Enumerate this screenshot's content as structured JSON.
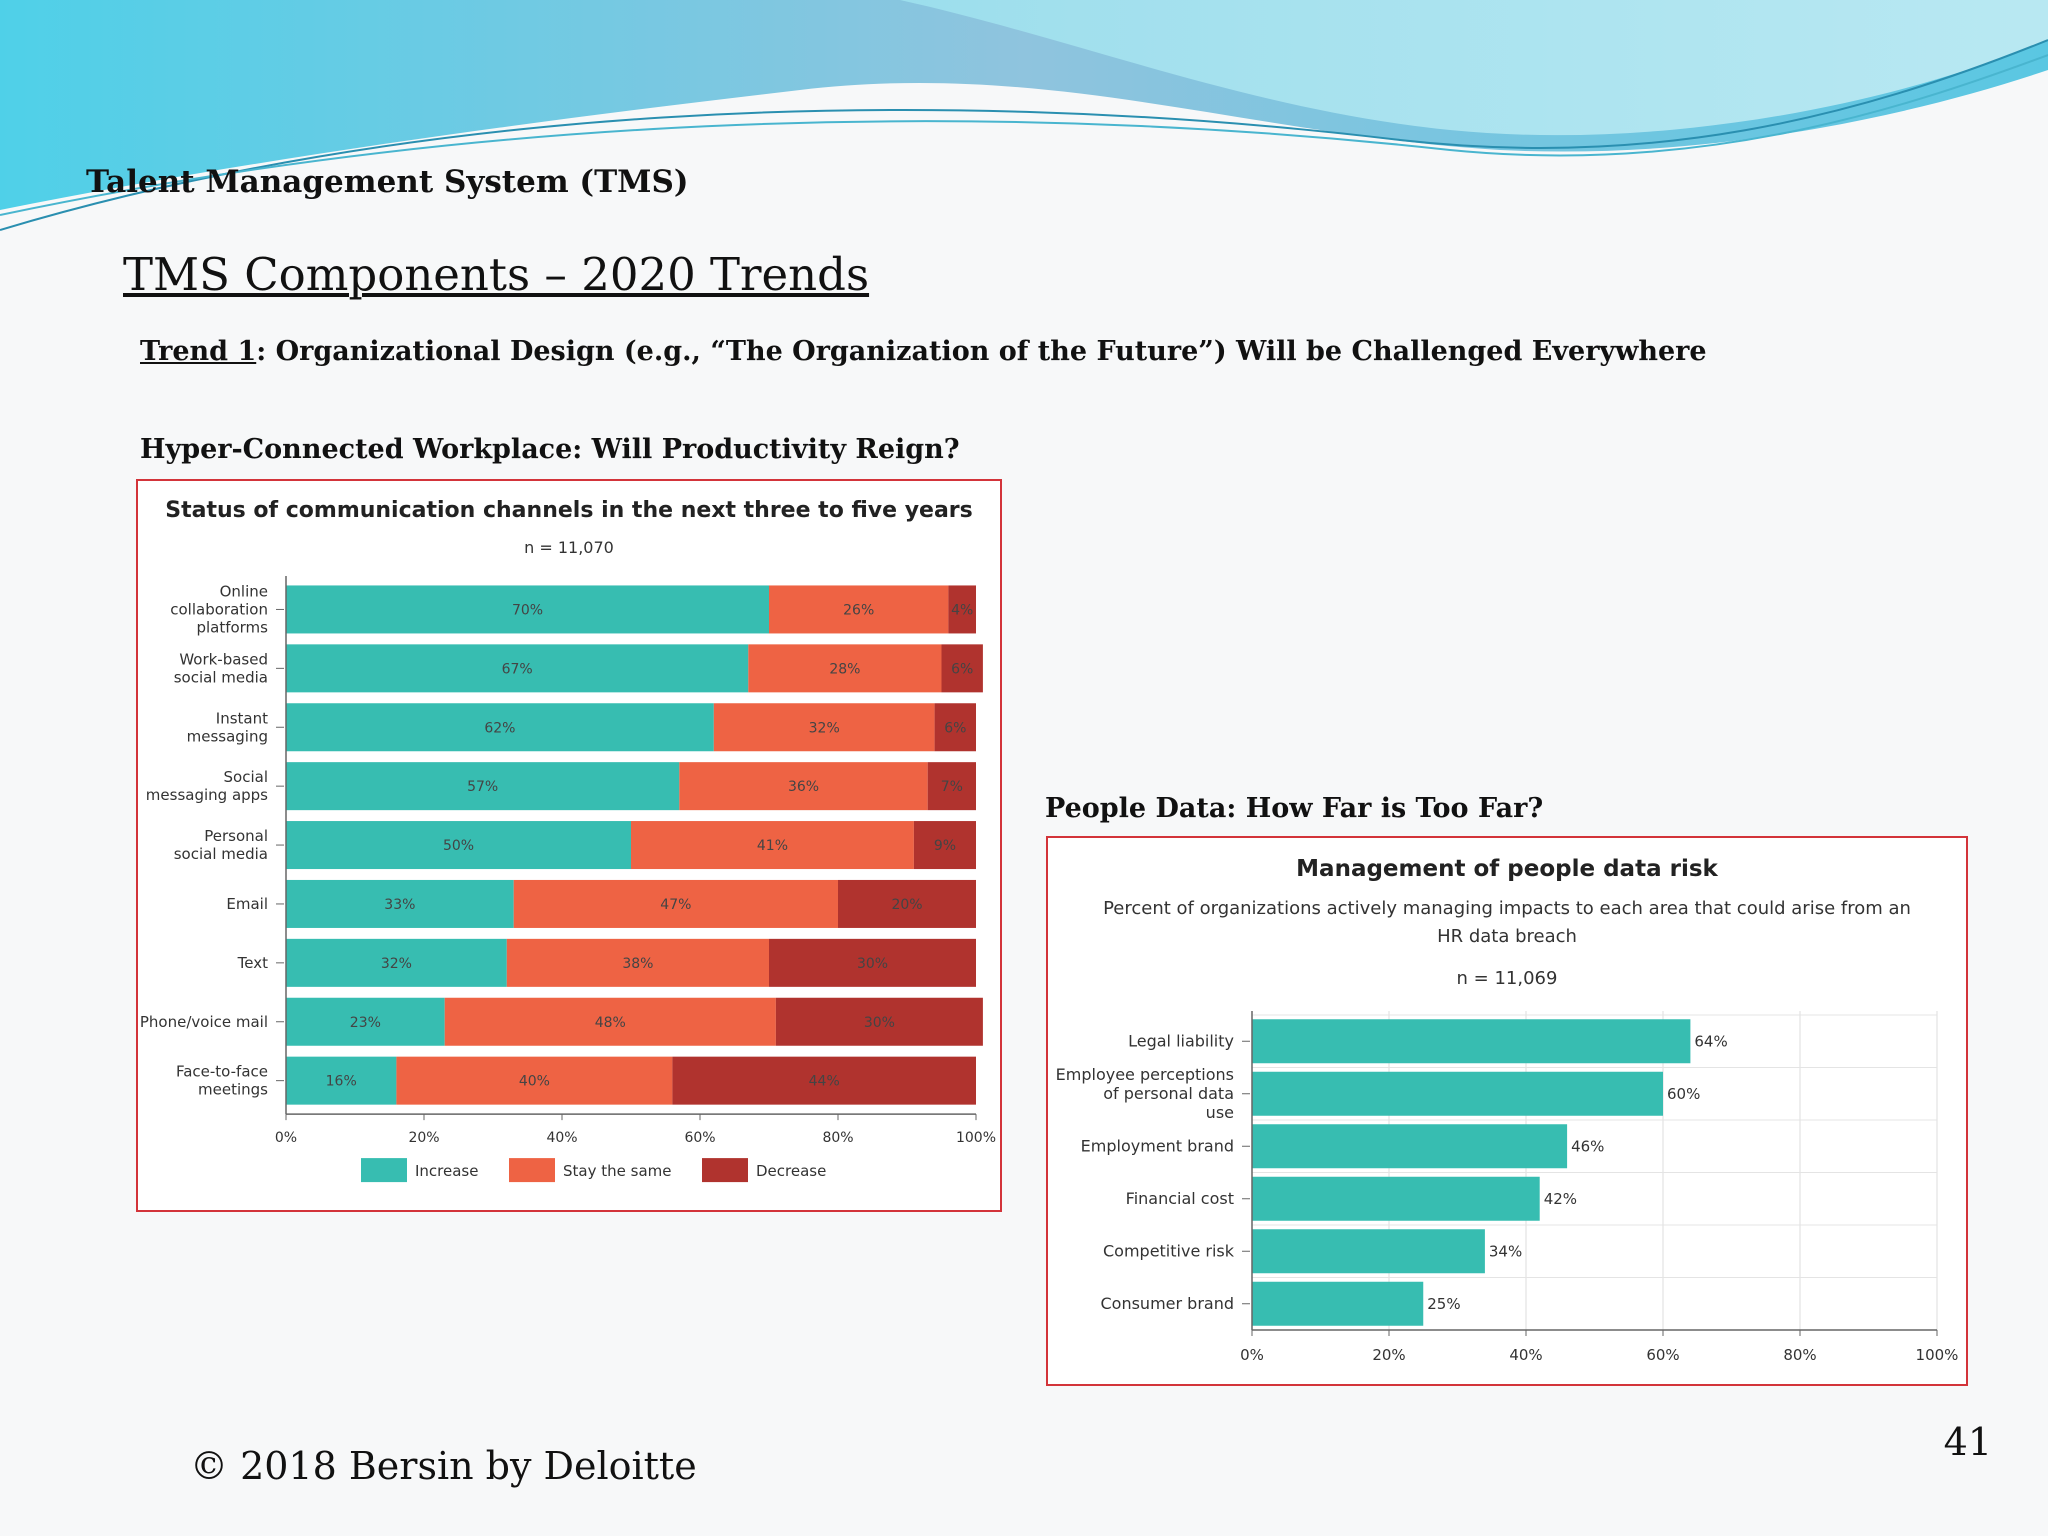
{
  "header": {
    "title": "Talent Management System (TMS)"
  },
  "slide": {
    "title": "TMS Components – 2020 Trends",
    "trend_label": "Trend 1",
    "trend_text": ": Organizational Design (e.g., “The Organization of the Future”) Will be Challenged Everywhere",
    "left_section_title": "Hyper-Connected Workplace: Will Productivity Reign?",
    "right_section_title": "People Data: How Far is Too Far?"
  },
  "footer": {
    "copyright": "© 2018 Bersin by Deloitte",
    "page_number": "41"
  },
  "colors": {
    "increase": "#37bdb1",
    "stay_same": "#ee6344",
    "decrease": "#b0332e",
    "border": "#d3343a"
  },
  "chart_data": [
    {
      "type": "bar",
      "orientation": "horizontal",
      "stacked": true,
      "title": "Status of communication channels in the next three to five years",
      "subtitle": "n = 11,070",
      "categories": [
        [
          "Online",
          "collaboration",
          "platforms"
        ],
        [
          "Work-based",
          "social media"
        ],
        [
          "Instant",
          "messaging"
        ],
        [
          "Social",
          "messaging apps"
        ],
        [
          "Personal",
          "social media"
        ],
        [
          "Email"
        ],
        [
          "Text"
        ],
        [
          "Phone/voice mail"
        ],
        [
          "Face-to-face",
          "meetings"
        ]
      ],
      "series": [
        {
          "name": "Increase",
          "values": [
            70,
            67,
            62,
            57,
            50,
            33,
            32,
            23,
            16
          ]
        },
        {
          "name": "Stay the same",
          "values": [
            26,
            28,
            32,
            36,
            41,
            47,
            38,
            48,
            40
          ]
        },
        {
          "name": "Decrease",
          "values": [
            4,
            6,
            6,
            7,
            9,
            20,
            30,
            30,
            44
          ]
        }
      ],
      "xlim": [
        0,
        100
      ],
      "x_ticks": [
        "0%",
        "20%",
        "40%",
        "60%",
        "80%",
        "100%"
      ],
      "legend": "bottom",
      "grid": false
    },
    {
      "type": "bar",
      "orientation": "horizontal",
      "title": "Management of people data risk",
      "subtitle": [
        "Percent of organizations actively managing impacts to each area that could arise from an",
        "HR data breach"
      ],
      "n_label": "n = 11,069",
      "categories": [
        [
          "Legal liability"
        ],
        [
          "Employee perceptions",
          "of personal data",
          "use"
        ],
        [
          "Employment brand"
        ],
        [
          "Financial cost"
        ],
        [
          "Competitive risk"
        ],
        [
          "Consumer brand"
        ]
      ],
      "values": [
        64,
        60,
        46,
        42,
        34,
        25
      ],
      "xlim": [
        0,
        100
      ],
      "x_ticks": [
        "0%",
        "20%",
        "40%",
        "60%",
        "80%",
        "100%"
      ],
      "grid": true
    }
  ]
}
